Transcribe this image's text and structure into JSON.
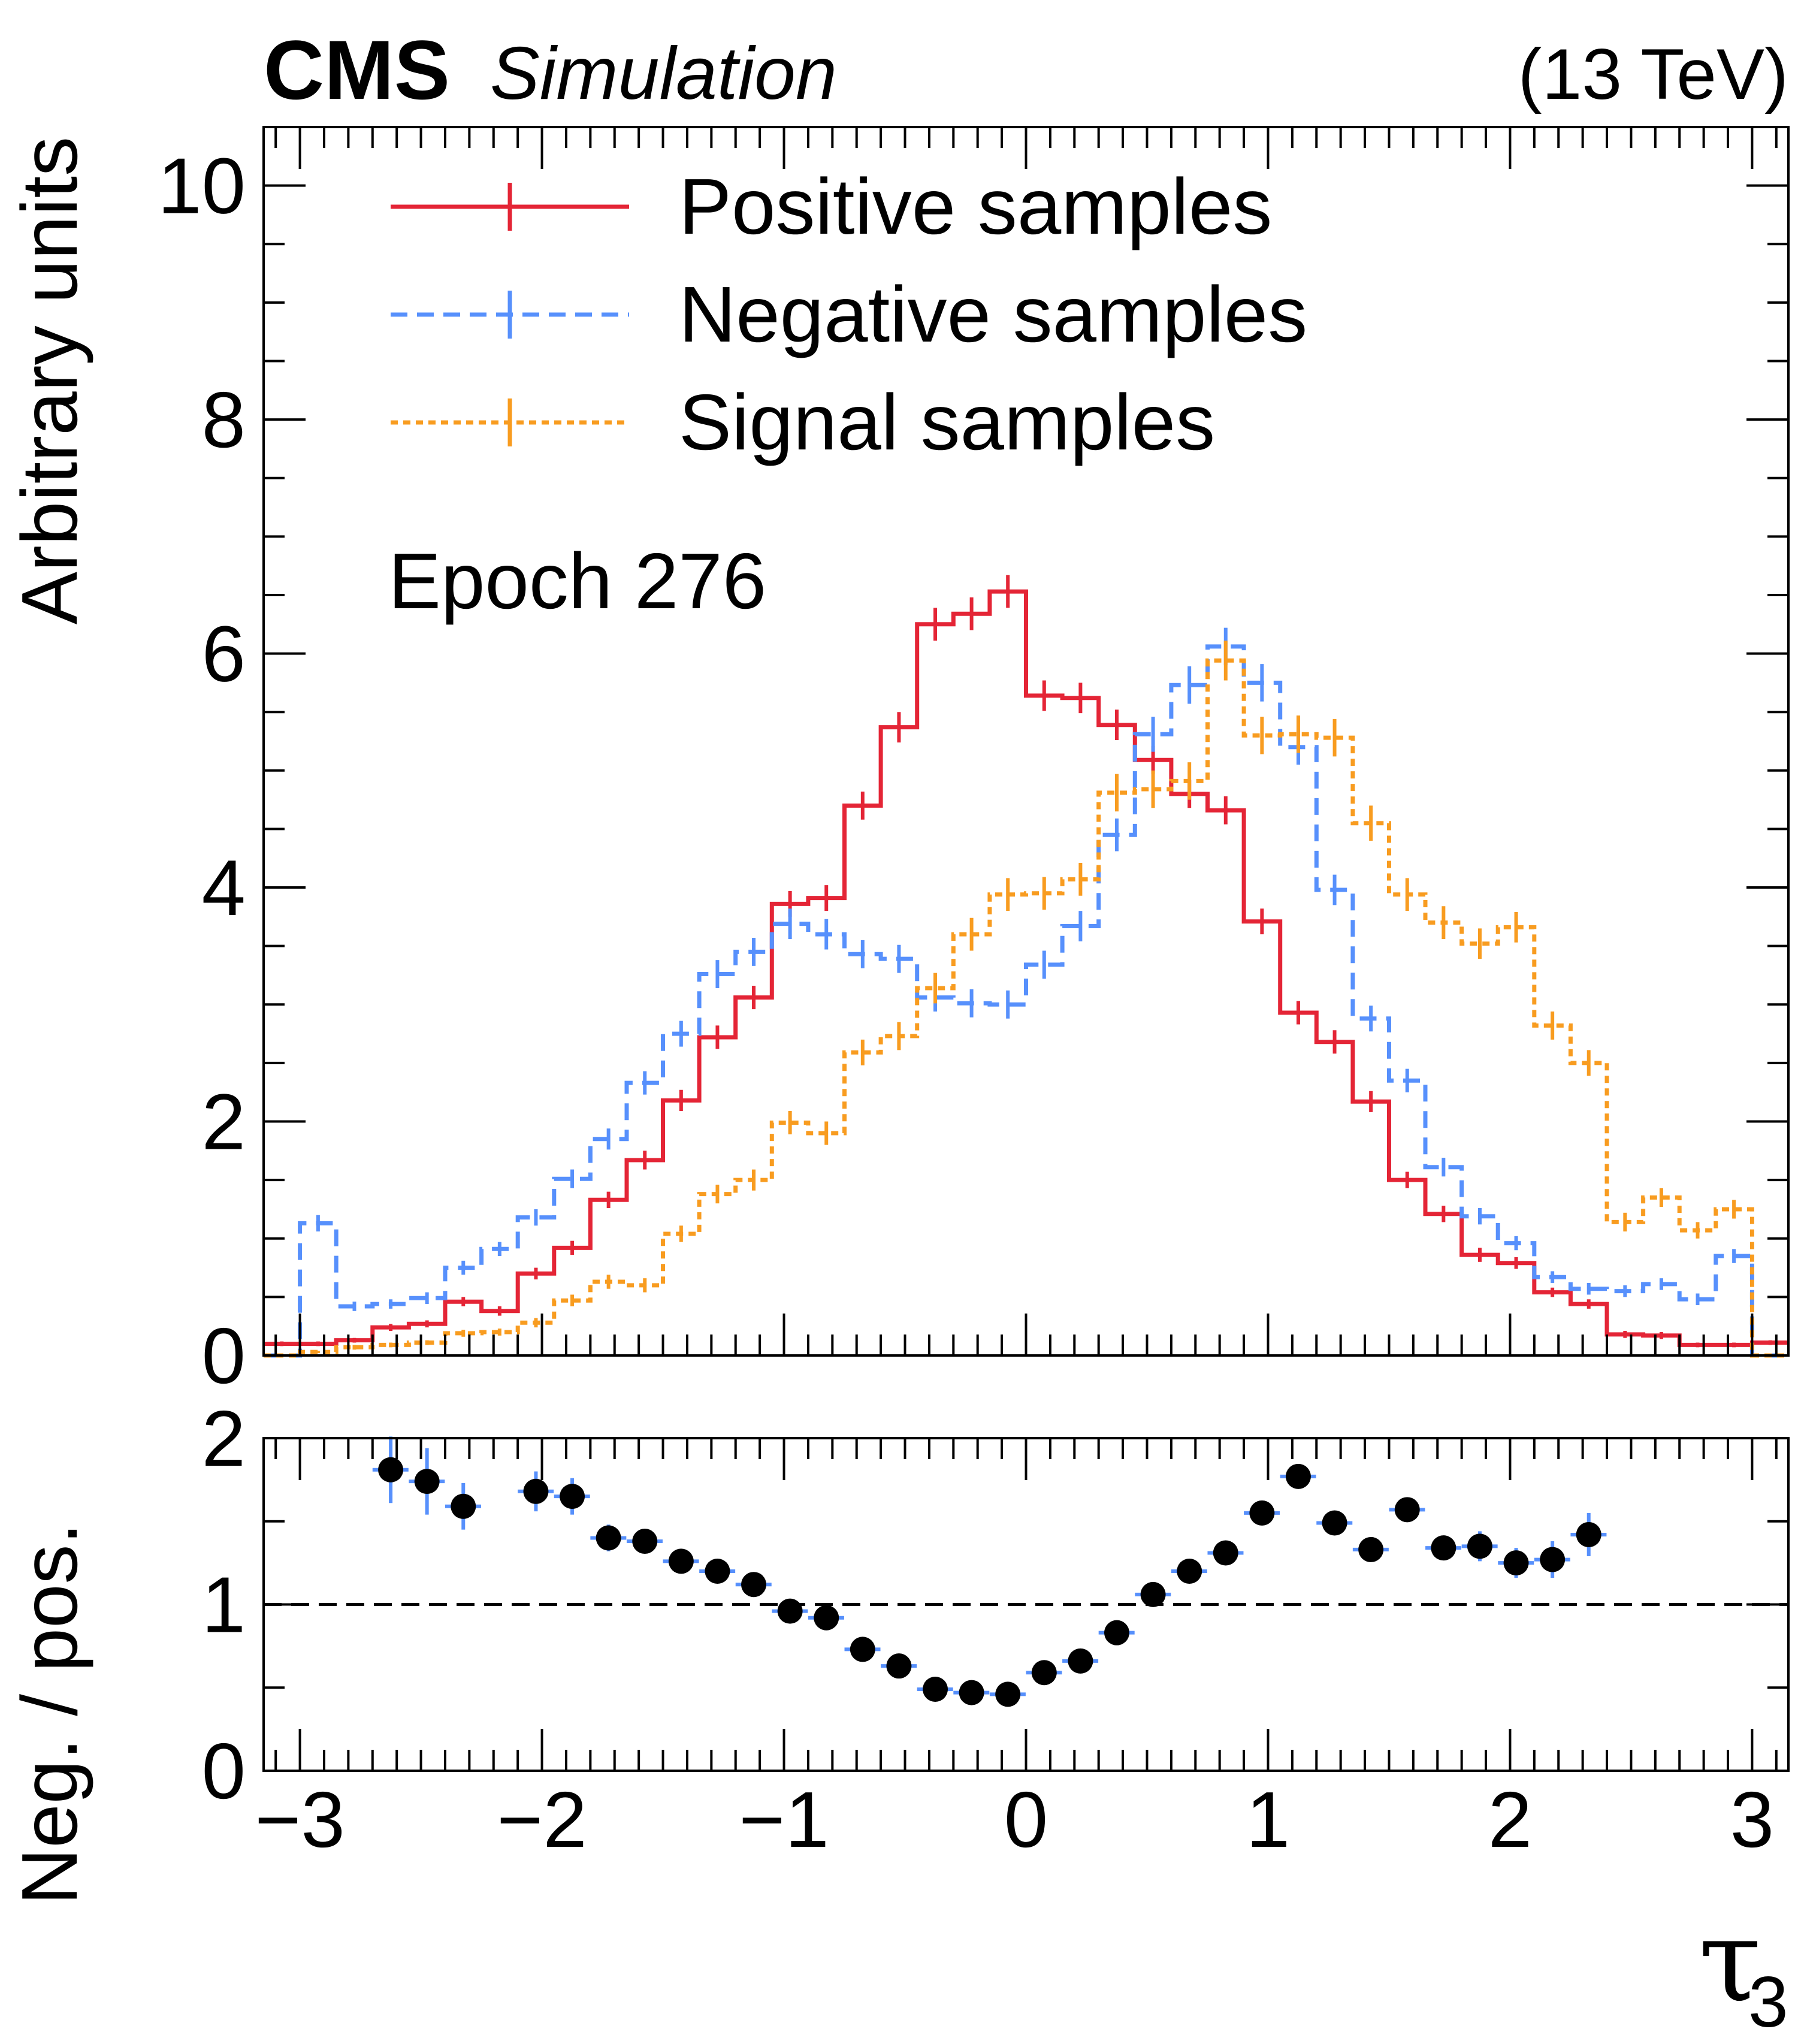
{
  "header": {
    "experiment": "CMS",
    "status": "Simulation",
    "energy": "(13 TeV)"
  },
  "annotation": "Epoch 276",
  "colors": {
    "positive": "#e42536",
    "negative": "#5790fc",
    "signal": "#f89c20",
    "ratio_points": "#000000",
    "ratio_errors": "#5790fc",
    "reference_line": "#000000"
  },
  "chart_data": [
    {
      "type": "histogram",
      "panel": "main",
      "title": "",
      "xlabel": "",
      "ylabel": "Arbitrary units",
      "xlim": [
        -3.15,
        3.15
      ],
      "ylim": [
        0,
        10.5
      ],
      "yticks": [
        0,
        2,
        4,
        6,
        8,
        10
      ],
      "ytick_labels": [
        "0",
        "2",
        "4",
        "6",
        "8",
        "10"
      ],
      "bin_edges": [
        -3.15,
        -3.0,
        -2.85,
        -2.7,
        -2.55,
        -2.4,
        -2.25,
        -2.1,
        -1.95,
        -1.8,
        -1.65,
        -1.5,
        -1.35,
        -1.2,
        -1.05,
        -0.9,
        -0.75,
        -0.6,
        -0.45,
        -0.3,
        -0.15,
        0.0,
        0.15,
        0.3,
        0.45,
        0.6,
        0.75,
        0.9,
        1.05,
        1.2,
        1.35,
        1.5,
        1.65,
        1.8,
        1.95,
        2.1,
        2.25,
        2.4,
        2.55,
        2.7,
        2.85,
        3.0,
        3.15
      ],
      "legend_position": "top-left",
      "series": [
        {
          "name": "Positive samples",
          "style": "solid",
          "values": [
            0.1,
            0.1,
            0.13,
            0.24,
            0.27,
            0.46,
            0.38,
            0.7,
            0.92,
            1.33,
            1.67,
            2.18,
            2.72,
            3.06,
            3.86,
            3.91,
            4.7,
            5.37,
            6.25,
            6.34,
            6.53,
            5.64,
            5.62,
            5.39,
            5.09,
            4.8,
            4.66,
            3.71,
            2.93,
            2.68,
            2.17,
            1.5,
            1.21,
            0.86,
            0.79,
            0.54,
            0.44,
            0.18,
            0.17,
            0.09,
            0.09,
            0.11
          ],
          "errors": [
            0.02,
            0.02,
            0.02,
            0.03,
            0.03,
            0.04,
            0.04,
            0.05,
            0.06,
            0.07,
            0.08,
            0.09,
            0.1,
            0.1,
            0.11,
            0.11,
            0.12,
            0.13,
            0.14,
            0.14,
            0.14,
            0.13,
            0.13,
            0.13,
            0.12,
            0.12,
            0.12,
            0.11,
            0.1,
            0.1,
            0.09,
            0.07,
            0.07,
            0.06,
            0.05,
            0.04,
            0.04,
            0.03,
            0.03,
            0.02,
            0.02,
            0.02
          ]
        },
        {
          "name": "Negative samples",
          "style": "dashed",
          "values": [
            0.0,
            1.13,
            0.42,
            0.44,
            0.49,
            0.75,
            0.91,
            1.18,
            1.51,
            1.85,
            2.33,
            2.75,
            3.26,
            3.45,
            3.69,
            3.6,
            3.43,
            3.39,
            3.06,
            3.01,
            3.0,
            3.34,
            3.67,
            4.45,
            5.31,
            5.73,
            6.06,
            5.75,
            5.2,
            3.98,
            2.88,
            2.35,
            1.61,
            1.19,
            0.96,
            0.67,
            0.57,
            0.55,
            0.61,
            0.48,
            0.85,
            0.0
          ],
          "errors": [
            0.0,
            0.07,
            0.04,
            0.04,
            0.05,
            0.06,
            0.06,
            0.07,
            0.08,
            0.09,
            0.1,
            0.11,
            0.12,
            0.12,
            0.13,
            0.13,
            0.12,
            0.12,
            0.12,
            0.12,
            0.12,
            0.12,
            0.13,
            0.14,
            0.15,
            0.16,
            0.16,
            0.16,
            0.15,
            0.13,
            0.11,
            0.1,
            0.08,
            0.07,
            0.06,
            0.05,
            0.05,
            0.05,
            0.05,
            0.05,
            0.06,
            0.0
          ]
        },
        {
          "name": "Signal samples",
          "style": "dotted",
          "values": [
            0.0,
            0.03,
            0.07,
            0.09,
            0.11,
            0.19,
            0.2,
            0.28,
            0.47,
            0.63,
            0.6,
            1.04,
            1.38,
            1.5,
            1.99,
            1.9,
            2.59,
            2.73,
            3.14,
            3.6,
            3.94,
            3.95,
            4.07,
            4.81,
            4.84,
            4.91,
            5.94,
            5.3,
            5.31,
            5.28,
            4.55,
            3.94,
            3.7,
            3.52,
            3.66,
            2.82,
            2.5,
            1.14,
            1.35,
            1.07,
            1.25,
            0.0
          ],
          "errors": [
            0.0,
            0.01,
            0.02,
            0.02,
            0.02,
            0.03,
            0.03,
            0.04,
            0.05,
            0.06,
            0.06,
            0.07,
            0.08,
            0.09,
            0.1,
            0.1,
            0.11,
            0.12,
            0.13,
            0.14,
            0.14,
            0.14,
            0.14,
            0.16,
            0.16,
            0.16,
            0.17,
            0.16,
            0.16,
            0.16,
            0.15,
            0.14,
            0.14,
            0.13,
            0.13,
            0.12,
            0.11,
            0.08,
            0.08,
            0.07,
            0.08,
            0.0
          ]
        }
      ]
    },
    {
      "type": "scatter",
      "panel": "ratio",
      "xlabel": "τ",
      "xlabel_subscript": "3",
      "ylabel": "Neg. / pos.",
      "xlim": [
        -3.15,
        3.15
      ],
      "ylim": [
        0,
        2
      ],
      "yticks": [
        0,
        1,
        2
      ],
      "ytick_labels": [
        "0",
        "1",
        "2"
      ],
      "xticks": [
        -3,
        -2,
        -1,
        0,
        1,
        2,
        3
      ],
      "xtick_labels": [
        "−3",
        "−2",
        "−1",
        "0",
        "1",
        "2",
        "3"
      ],
      "reference_line": 1,
      "bin_half_width": 0.075,
      "x": [
        -2.625,
        -2.475,
        -2.325,
        -2.025,
        -1.875,
        -1.725,
        -1.575,
        -1.425,
        -1.275,
        -1.125,
        -0.975,
        -0.825,
        -0.675,
        -0.525,
        -0.375,
        -0.225,
        -0.075,
        0.075,
        0.225,
        0.375,
        0.525,
        0.675,
        0.825,
        0.975,
        1.125,
        1.275,
        1.425,
        1.575,
        1.725,
        1.875,
        2.025,
        2.175,
        2.325
      ],
      "y": [
        1.81,
        1.74,
        1.59,
        1.68,
        1.65,
        1.4,
        1.38,
        1.26,
        1.2,
        1.12,
        0.96,
        0.92,
        0.73,
        0.63,
        0.49,
        0.47,
        0.46,
        0.59,
        0.66,
        0.83,
        1.06,
        1.2,
        1.31,
        1.55,
        1.77,
        1.49,
        1.33,
        1.57,
        1.34,
        1.35,
        1.25,
        1.27,
        1.42
      ],
      "yerr": [
        0.2,
        0.2,
        0.14,
        0.12,
        0.11,
        0.08,
        0.07,
        0.05,
        0.05,
        0.05,
        0.04,
        0.04,
        0.03,
        0.03,
        0.03,
        0.03,
        0.03,
        0.03,
        0.03,
        0.03,
        0.04,
        0.04,
        0.04,
        0.05,
        0.06,
        0.06,
        0.06,
        0.07,
        0.07,
        0.09,
        0.09,
        0.11,
        0.13
      ]
    }
  ]
}
